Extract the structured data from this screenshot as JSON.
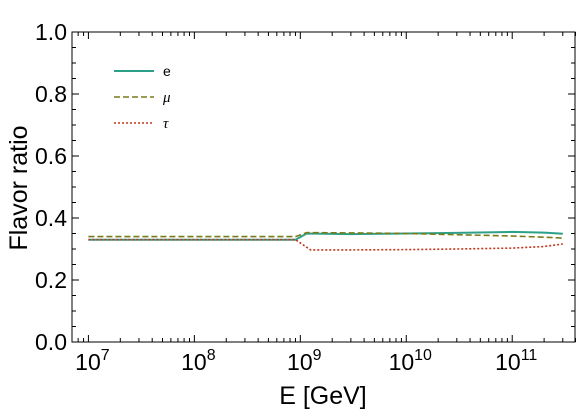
{
  "chart_data": {
    "type": "line",
    "xlabel": "E [GeV]",
    "ylabel": "Flavor ratio",
    "x_scale": "log",
    "xlim": [
      7000000,
      400000000000
    ],
    "ylim": [
      0,
      1
    ],
    "x_ticks": [
      {
        "value": 10000000,
        "base": "10",
        "exp": "7"
      },
      {
        "value": 100000000,
        "base": "10",
        "exp": "8"
      },
      {
        "value": 1000000000,
        "base": "10",
        "exp": "9"
      },
      {
        "value": 10000000000,
        "base": "10",
        "exp": "10"
      },
      {
        "value": 100000000000,
        "base": "10",
        "exp": "11"
      }
    ],
    "y_ticks": [
      {
        "value": 0,
        "label": "0.0"
      },
      {
        "value": 0.2,
        "label": "0.2"
      },
      {
        "value": 0.4,
        "label": "0.4"
      },
      {
        "value": 0.6,
        "label": "0.6"
      },
      {
        "value": 0.8,
        "label": "0.8"
      },
      {
        "value": 1.0,
        "label": "1.0"
      }
    ],
    "grid": false,
    "legend_position": "top-left",
    "series": [
      {
        "name": "e",
        "color": "#2ca089",
        "style": "solid",
        "points": [
          [
            10000000,
            0.33
          ],
          [
            100000000,
            0.33
          ],
          [
            900000000,
            0.33
          ],
          [
            1150000000,
            0.35
          ],
          [
            3000000000,
            0.348
          ],
          [
            10000000000,
            0.35
          ],
          [
            30000000000,
            0.352
          ],
          [
            100000000000,
            0.355
          ],
          [
            200000000000,
            0.353
          ],
          [
            300000000000,
            0.349
          ]
        ]
      },
      {
        "name": "μ",
        "color": "#7a7a1a",
        "style": "dashed",
        "points": [
          [
            10000000,
            0.34
          ],
          [
            100000000,
            0.34
          ],
          [
            900000000,
            0.34
          ],
          [
            1150000000,
            0.353
          ],
          [
            3000000000,
            0.352
          ],
          [
            10000000000,
            0.35
          ],
          [
            30000000000,
            0.346
          ],
          [
            100000000000,
            0.342
          ],
          [
            200000000000,
            0.338
          ],
          [
            300000000000,
            0.335
          ]
        ]
      },
      {
        "name": "τ",
        "color": "#c0361a",
        "style": "dotted",
        "points": [
          [
            10000000,
            0.33
          ],
          [
            100000000,
            0.33
          ],
          [
            900000000,
            0.33
          ],
          [
            1250000000,
            0.297
          ],
          [
            3000000000,
            0.297
          ],
          [
            10000000000,
            0.298
          ],
          [
            30000000000,
            0.3
          ],
          [
            100000000000,
            0.303
          ],
          [
            200000000000,
            0.308
          ],
          [
            300000000000,
            0.316
          ]
        ]
      }
    ]
  }
}
